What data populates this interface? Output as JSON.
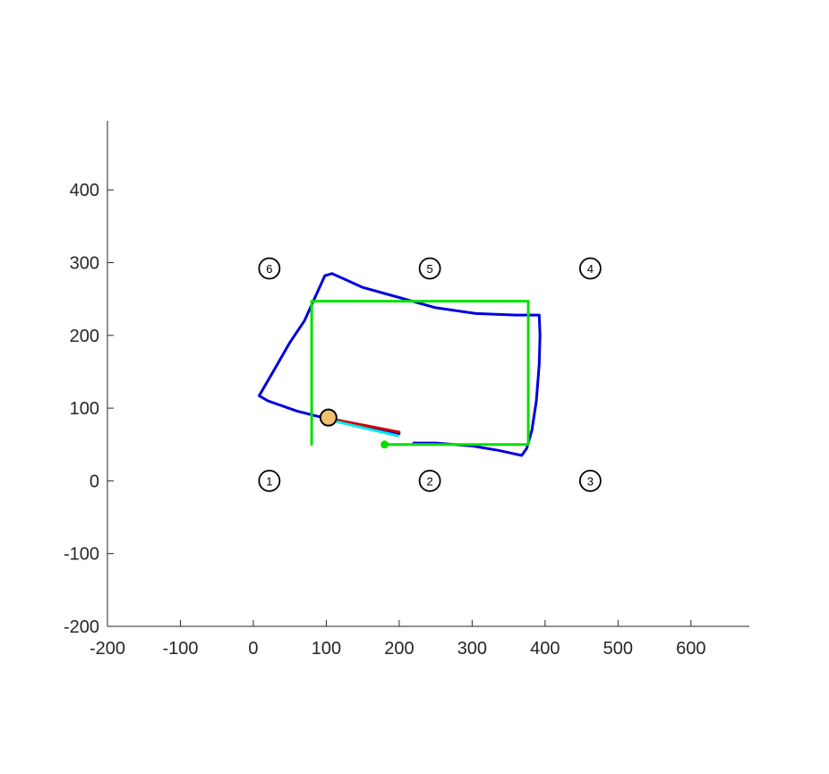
{
  "chart_data": {
    "type": "line",
    "title": "",
    "xlabel": "",
    "ylabel": "",
    "xlim": [
      -200,
      680
    ],
    "ylim": [
      -200,
      495
    ],
    "xticks": [
      -200,
      -100,
      0,
      100,
      200,
      300,
      400,
      500,
      600
    ],
    "yticks": [
      -200,
      -100,
      0,
      100,
      200,
      300,
      400
    ],
    "grid": false,
    "landmarks": [
      {
        "label": "1",
        "x": 22,
        "y": 0
      },
      {
        "label": "2",
        "x": 242,
        "y": 0
      },
      {
        "label": "3",
        "x": 462,
        "y": 0
      },
      {
        "label": "4",
        "x": 462,
        "y": 292
      },
      {
        "label": "5",
        "x": 242,
        "y": 292
      },
      {
        "label": "6",
        "x": 22,
        "y": 292
      }
    ],
    "series": [
      {
        "color": "#0000dd",
        "points": [
          [
            200,
            65
          ],
          [
            160,
            72
          ],
          [
            103,
            85
          ],
          [
            60,
            96
          ],
          [
            20,
            110
          ],
          [
            8,
            117
          ],
          [
            30,
            155
          ],
          [
            50,
            190
          ],
          [
            70,
            220
          ],
          [
            98,
            282
          ],
          [
            108,
            285
          ],
          [
            150,
            266
          ],
          [
            200,
            252
          ],
          [
            250,
            238
          ],
          [
            305,
            230
          ],
          [
            360,
            228
          ],
          [
            392,
            228
          ],
          [
            393,
            200
          ],
          [
            392,
            160
          ],
          [
            388,
            110
          ],
          [
            382,
            70
          ],
          [
            375,
            45
          ],
          [
            368,
            35
          ],
          [
            336,
            42
          ],
          [
            300,
            48
          ],
          [
            250,
            52
          ],
          [
            220,
            52
          ]
        ]
      },
      {
        "color": "#00e000",
        "points": [
          [
            80,
            50
          ],
          [
            80,
            247
          ],
          [
            377,
            247
          ],
          [
            377,
            50
          ],
          [
            180,
            50
          ]
        ]
      },
      {
        "color": "#cc0000",
        "points": [
          [
            103,
            86
          ],
          [
            200,
            67
          ]
        ]
      },
      {
        "color": "#00e8e8",
        "points": [
          [
            103,
            84
          ],
          [
            198,
            62
          ]
        ]
      }
    ],
    "markers": [
      {
        "kind": "dot",
        "color": "#00e000",
        "x": 180,
        "y": 50
      },
      {
        "kind": "ring",
        "fill": "#f0c070",
        "stroke": "#000000",
        "x": 103,
        "y": 87
      }
    ]
  }
}
